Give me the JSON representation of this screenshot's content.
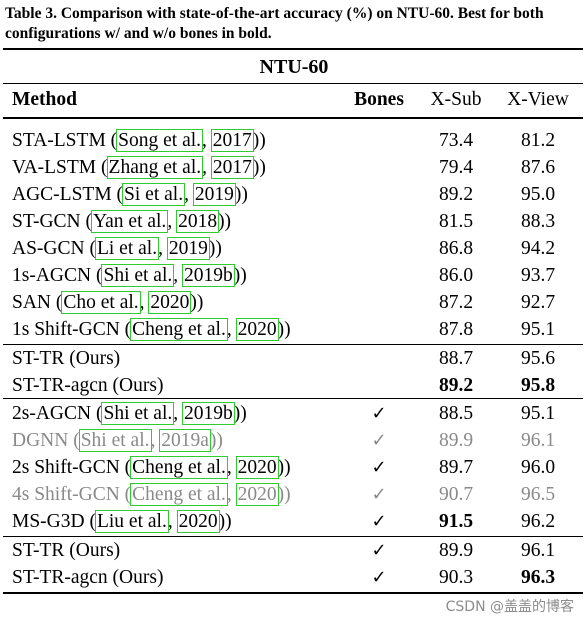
{
  "caption": "Table 3. Comparison with state-of-the-art accuracy (%) on NTU-60. Best for both configurations w/ and w/o bones in bold.",
  "dataset_title": "NTU-60",
  "columns": {
    "method": "Method",
    "bones": "Bones",
    "xsub": "X-Sub",
    "xview": "X-View"
  },
  "check_mark": "✓",
  "rows": [
    {
      "name": "STA-LSTM (",
      "author": "Song et al.",
      "sep": ", ",
      "year": "2017",
      "close": "))",
      "bones": "",
      "xsub": "73.4",
      "xview": "81.2"
    },
    {
      "name": "VA-LSTM (",
      "author": "Zhang et al.",
      "sep": ", ",
      "year": "2017",
      "close": "))",
      "bones": "",
      "xsub": "79.4",
      "xview": "87.6"
    },
    {
      "name": "AGC-LSTM (",
      "author": "Si et al.",
      "sep": ", ",
      "year": "2019",
      "close": "))",
      "bones": "",
      "xsub": "89.2",
      "xview": "95.0"
    },
    {
      "name": "ST-GCN (",
      "author": "Yan et al.",
      "sep": ", ",
      "year": "2018",
      "close": "))",
      "bones": "",
      "xsub": "81.5",
      "xview": "88.3"
    },
    {
      "name": "AS-GCN (",
      "author": "Li et al.",
      "sep": ", ",
      "year": "2019",
      "close": "))",
      "bones": "",
      "xsub": "86.8",
      "xview": "94.2"
    },
    {
      "name": "1s-AGCN (",
      "author": "Shi et al.",
      "sep": ", ",
      "year": "2019b",
      "close": "))",
      "bones": "",
      "xsub": "86.0",
      "xview": "93.7"
    },
    {
      "name": "SAN (",
      "author": "Cho et al.",
      "sep": ", ",
      "year": "2020",
      "close": "))",
      "bones": "",
      "xsub": "87.2",
      "xview": "92.7"
    },
    {
      "name": "1s Shift-GCN (",
      "author": "Cheng et al.",
      "sep": ", ",
      "year": "2020",
      "close": "))",
      "bones": "",
      "xsub": "87.8",
      "xview": "95.1"
    },
    {
      "name": "ST-TR (Ours)",
      "bones": "",
      "xsub": "88.7",
      "xview": "95.6"
    },
    {
      "name": "ST-TR-agcn (Ours)",
      "bones": "",
      "xsub": "89.2",
      "xview": "95.8"
    },
    {
      "name": "2s-AGCN (",
      "author": "Shi et al.",
      "sep": ", ",
      "year": "2019b",
      "close": "))",
      "bones": "✓",
      "xsub": "88.5",
      "xview": "95.1"
    },
    {
      "name": "DGNN (",
      "author": "Shi et al.",
      "sep": ", ",
      "year": "2019a",
      "close": "))",
      "bones": "✓",
      "xsub": "89.9",
      "xview": "96.1"
    },
    {
      "name": "2s Shift-GCN (",
      "author": "Cheng et al.",
      "sep": ", ",
      "year": "2020",
      "close": "))",
      "bones": "✓",
      "xsub": "89.7",
      "xview": "96.0"
    },
    {
      "name": "4s Shift-GCN (",
      "author": "Cheng et al.",
      "sep": ", ",
      "year": "2020",
      "close": "))",
      "bones": "✓",
      "xsub": "90.7",
      "xview": "96.5"
    },
    {
      "name": "MS-G3D (",
      "author": "Liu et al.",
      "sep": ", ",
      "year": "2020",
      "close": "))",
      "bones": "✓",
      "xsub": "91.5",
      "xview": "96.2"
    },
    {
      "name": "ST-TR (Ours)",
      "bones": "✓",
      "xsub": "89.9",
      "xview": "96.1"
    },
    {
      "name": "ST-TR-agcn (Ours)",
      "bones": "✓",
      "xsub": "90.3",
      "xview": "96.3"
    }
  ],
  "watermark": "CSDN @盖盖的博客"
}
